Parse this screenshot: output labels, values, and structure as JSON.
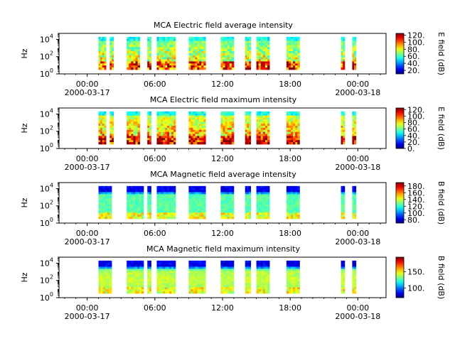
{
  "chart_data": [
    {
      "type": "heatmap",
      "title": "MCA  Electric field average intensity",
      "ylabel": "Hz",
      "y_scale": "log",
      "y_tick_labels": [
        [
          "10",
          "0"
        ],
        [
          "10",
          "2"
        ],
        [
          "10",
          "4"
        ]
      ],
      "x_tick_labels": [
        "00:00",
        "06:00",
        "12:00",
        "18:00",
        "00:00"
      ],
      "x_date_labels": [
        "2000-03-17",
        "2000-03-18"
      ],
      "colorbar": {
        "label": "E field (dB)",
        "range": [
          10,
          125
        ],
        "ticks": [
          "20.",
          "40.",
          "60.",
          "80.",
          "100.",
          "120."
        ]
      },
      "data_intervals_utc": [
        [
          "01:00",
          "01:40"
        ],
        [
          "02:00",
          "02:20"
        ],
        [
          "03:30",
          "04:40"
        ],
        [
          "05:20",
          "05:40"
        ],
        [
          "06:10",
          "07:50"
        ],
        [
          "09:00",
          "10:30"
        ],
        [
          "11:50",
          "13:00"
        ],
        [
          "14:00",
          "14:30"
        ],
        [
          "15:00",
          "16:10"
        ],
        [
          "17:40",
          "18:50"
        ],
        [
          "22:30",
          "22:50"
        ],
        [
          "23:30",
          "23:50"
        ]
      ]
    },
    {
      "type": "heatmap",
      "title": "MCA  Electric field maximum intensity",
      "ylabel": "Hz",
      "y_scale": "log",
      "y_tick_labels": [
        [
          "10",
          "0"
        ],
        [
          "10",
          "2"
        ],
        [
          "10",
          "4"
        ]
      ],
      "x_tick_labels": [
        "00:00",
        "06:00",
        "12:00",
        "18:00",
        "00:00"
      ],
      "x_date_labels": [
        "2000-03-17",
        "2000-03-18"
      ],
      "colorbar": {
        "label": "E field (dB)",
        "range": [
          0,
          125
        ],
        "ticks": [
          "0.",
          "20.",
          "40.",
          "60.",
          "80.",
          "100.",
          "120."
        ]
      },
      "data_intervals_utc": [
        [
          "01:00",
          "01:40"
        ],
        [
          "02:00",
          "02:20"
        ],
        [
          "03:30",
          "04:40"
        ],
        [
          "05:20",
          "05:40"
        ],
        [
          "06:10",
          "07:50"
        ],
        [
          "09:00",
          "10:30"
        ],
        [
          "11:50",
          "13:00"
        ],
        [
          "14:00",
          "14:30"
        ],
        [
          "15:00",
          "16:10"
        ],
        [
          "17:40",
          "18:50"
        ],
        [
          "22:30",
          "22:50"
        ],
        [
          "23:30",
          "23:50"
        ]
      ]
    },
    {
      "type": "heatmap",
      "title": "MCA  Magnetic field average intensity",
      "ylabel": "Hz",
      "y_scale": "log",
      "y_tick_labels": [
        [
          "10",
          "0"
        ],
        [
          "10",
          "2"
        ],
        [
          "10",
          "4"
        ]
      ],
      "x_tick_labels": [
        "00:00",
        "06:00",
        "12:00",
        "18:00",
        "00:00"
      ],
      "x_date_labels": [
        "2000-03-17",
        "2000-03-18"
      ],
      "colorbar": {
        "label": "B field (dB)",
        "range": [
          70,
          190
        ],
        "ticks": [
          "80.",
          "100.",
          "120.",
          "140.",
          "160.",
          "180."
        ]
      },
      "data_intervals_utc": [
        [
          "01:00",
          "02:10"
        ],
        [
          "03:30",
          "05:00"
        ],
        [
          "05:20",
          "05:40"
        ],
        [
          "06:10",
          "07:50"
        ],
        [
          "09:00",
          "10:30"
        ],
        [
          "11:50",
          "13:00"
        ],
        [
          "14:00",
          "14:30"
        ],
        [
          "15:00",
          "16:10"
        ],
        [
          "17:40",
          "18:50"
        ],
        [
          "22:30",
          "22:50"
        ],
        [
          "23:30",
          "23:50"
        ]
      ]
    },
    {
      "type": "heatmap",
      "title": "MCA  Magnetic field maximum intensity",
      "ylabel": "Hz",
      "y_scale": "log",
      "y_tick_labels": [
        [
          "10",
          "0"
        ],
        [
          "10",
          "2"
        ],
        [
          "10",
          "4"
        ]
      ],
      "x_tick_labels": [
        "00:00",
        "06:00",
        "12:00",
        "18:00",
        "00:00"
      ],
      "x_date_labels": [
        "2000-03-17",
        "2000-03-18"
      ],
      "colorbar": {
        "label": "B field (dB)",
        "range": [
          70,
          195
        ],
        "ticks": [
          "100.",
          "150."
        ]
      },
      "data_intervals_utc": [
        [
          "01:00",
          "02:10"
        ],
        [
          "03:30",
          "05:00"
        ],
        [
          "05:20",
          "05:40"
        ],
        [
          "06:10",
          "07:50"
        ],
        [
          "09:00",
          "10:30"
        ],
        [
          "11:50",
          "13:00"
        ],
        [
          "14:00",
          "14:30"
        ],
        [
          "15:00",
          "16:10"
        ],
        [
          "17:40",
          "18:50"
        ],
        [
          "22:30",
          "22:50"
        ],
        [
          "23:30",
          "23:50"
        ]
      ]
    }
  ]
}
